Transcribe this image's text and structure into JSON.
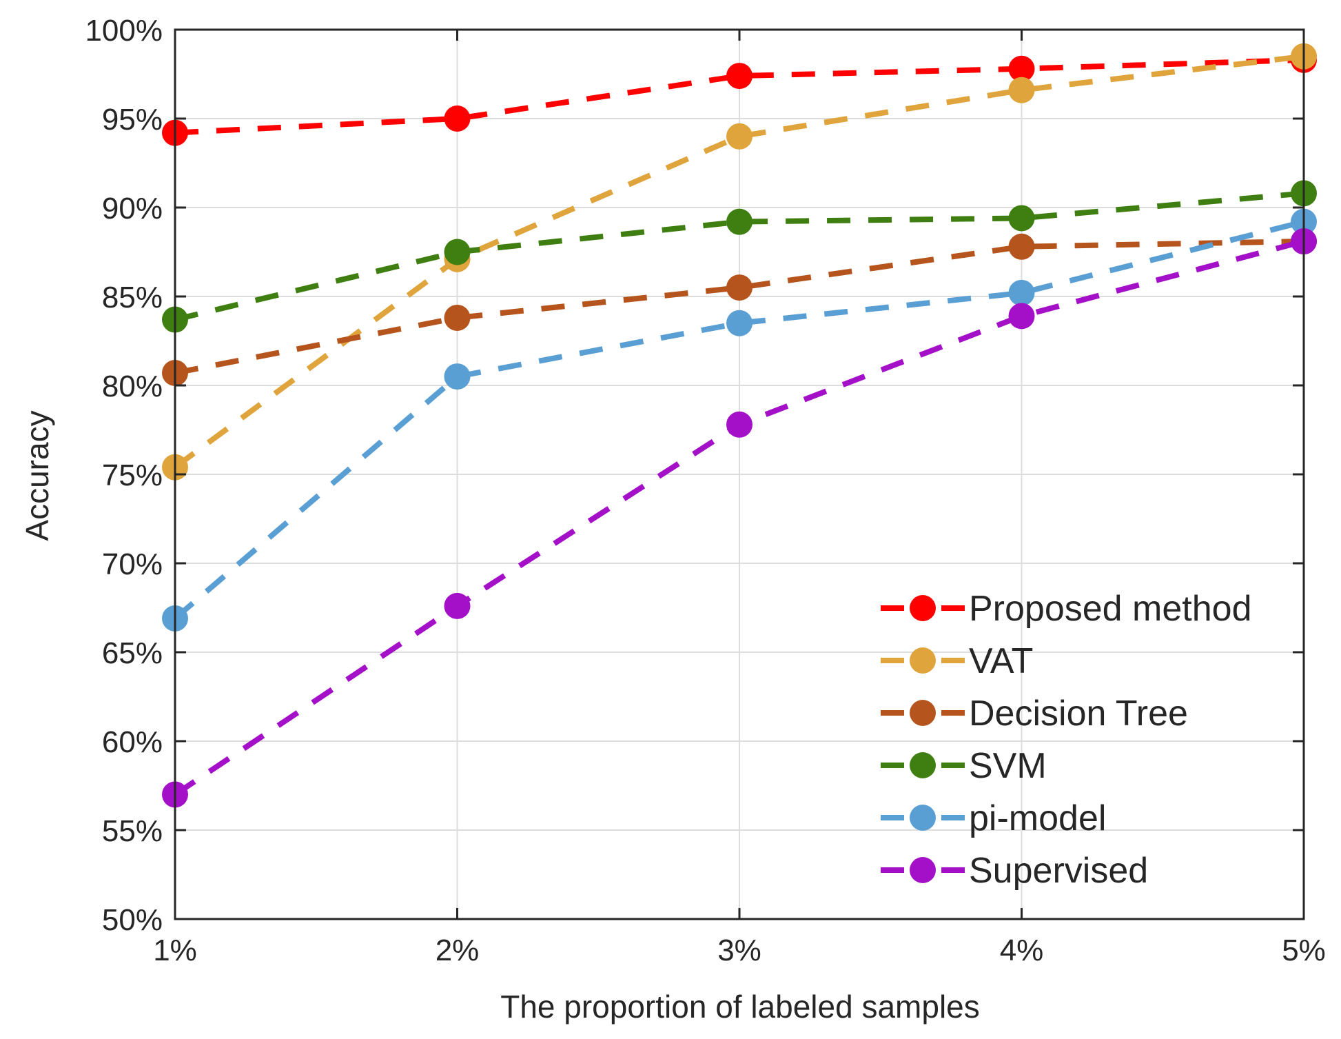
{
  "chart_data": {
    "type": "line",
    "title": "",
    "xlabel": "The proportion of labeled samples",
    "ylabel": "Accuracy",
    "categories": [
      "1%",
      "2%",
      "3%",
      "4%",
      "5%"
    ],
    "x": [
      1,
      2,
      3,
      4,
      5
    ],
    "xlim": [
      1,
      5
    ],
    "ylim": [
      50,
      100
    ],
    "yticks": [
      50,
      55,
      60,
      65,
      70,
      75,
      80,
      85,
      90,
      95,
      100
    ],
    "ytick_labels": [
      "50%",
      "55%",
      "60%",
      "65%",
      "70%",
      "75%",
      "80%",
      "85%",
      "90%",
      "95%",
      "100%"
    ],
    "grid": true,
    "legend_position": "bottom-right",
    "series": [
      {
        "name": "Proposed method",
        "color": "#ff0000",
        "values": [
          94.2,
          95.0,
          97.4,
          97.8,
          98.3
        ]
      },
      {
        "name": "VAT",
        "color": "#e0a43c",
        "values": [
          75.4,
          87.1,
          94.0,
          96.6,
          98.5
        ]
      },
      {
        "name": "Decision Tree",
        "color": "#b5541c",
        "values": [
          80.7,
          83.8,
          85.5,
          87.8,
          88.1
        ]
      },
      {
        "name": "SVM",
        "color": "#3f7f12",
        "values": [
          83.7,
          87.5,
          89.2,
          89.4,
          90.8
        ]
      },
      {
        "name": "pi-model",
        "color": "#5a9fd4",
        "values": [
          66.9,
          80.5,
          83.5,
          85.2,
          89.2
        ]
      },
      {
        "name": "Supervised",
        "color": "#a310c7",
        "values": [
          57.0,
          67.6,
          77.8,
          83.9,
          88.1
        ]
      }
    ]
  }
}
